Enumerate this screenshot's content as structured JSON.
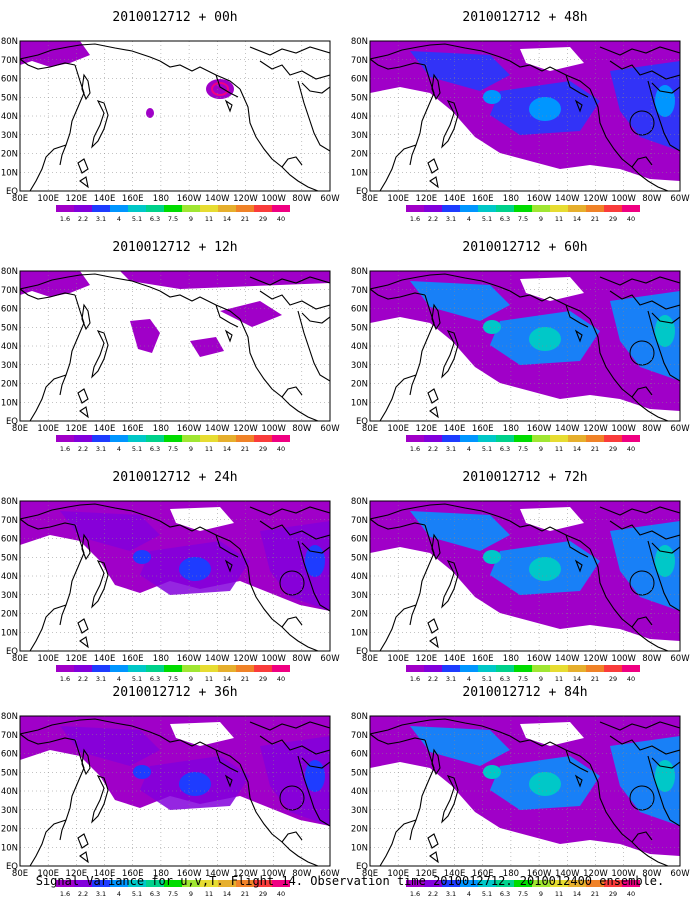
{
  "caption": "Signal Variance for u,v,T. Flight 14. Observation time 2010012712. 2010012400 ensemble.",
  "lon_labels": [
    "80E",
    "100E",
    "120E",
    "140E",
    "160E",
    "180",
    "160W",
    "140W",
    "120W",
    "100W",
    "80W",
    "60W"
  ],
  "lat_labels": [
    "80N",
    "70N",
    "60N",
    "50N",
    "40N",
    "30N",
    "20N",
    "10N",
    "EQ"
  ],
  "colorbar": {
    "levels": [
      "1.6",
      "2.2",
      "3.1",
      "4",
      "5.1",
      "6.3",
      "7.5",
      "9",
      "11",
      "14",
      "21",
      "29",
      "40"
    ],
    "colors": [
      "#a000c8",
      "#8200dc",
      "#1e3cff",
      "#0096ff",
      "#00c8c8",
      "#00d28c",
      "#00dc00",
      "#a0e632",
      "#e6dc32",
      "#e6af2d",
      "#f08228",
      "#fa3c3c",
      "#f00082"
    ]
  },
  "coast_color": "#000000",
  "panels": [
    {
      "title": "2010012712 + 00h",
      "lead": "00h",
      "fill_level": 0
    },
    {
      "title": "2010012712 + 48h",
      "lead": "48h",
      "fill_level": 2
    },
    {
      "title": "2010012712 + 12h",
      "lead": "12h",
      "fill_level": 0
    },
    {
      "title": "2010012712 + 60h",
      "lead": "60h",
      "fill_level": 3
    },
    {
      "title": "2010012712 + 24h",
      "lead": "24h",
      "fill_level": 1
    },
    {
      "title": "2010012712 + 72h",
      "lead": "72h",
      "fill_level": 3
    },
    {
      "title": "2010012712 + 36h",
      "lead": "36h",
      "fill_level": 1
    },
    {
      "title": "2010012712 + 84h",
      "lead": "84h",
      "fill_level": 3
    }
  ]
}
